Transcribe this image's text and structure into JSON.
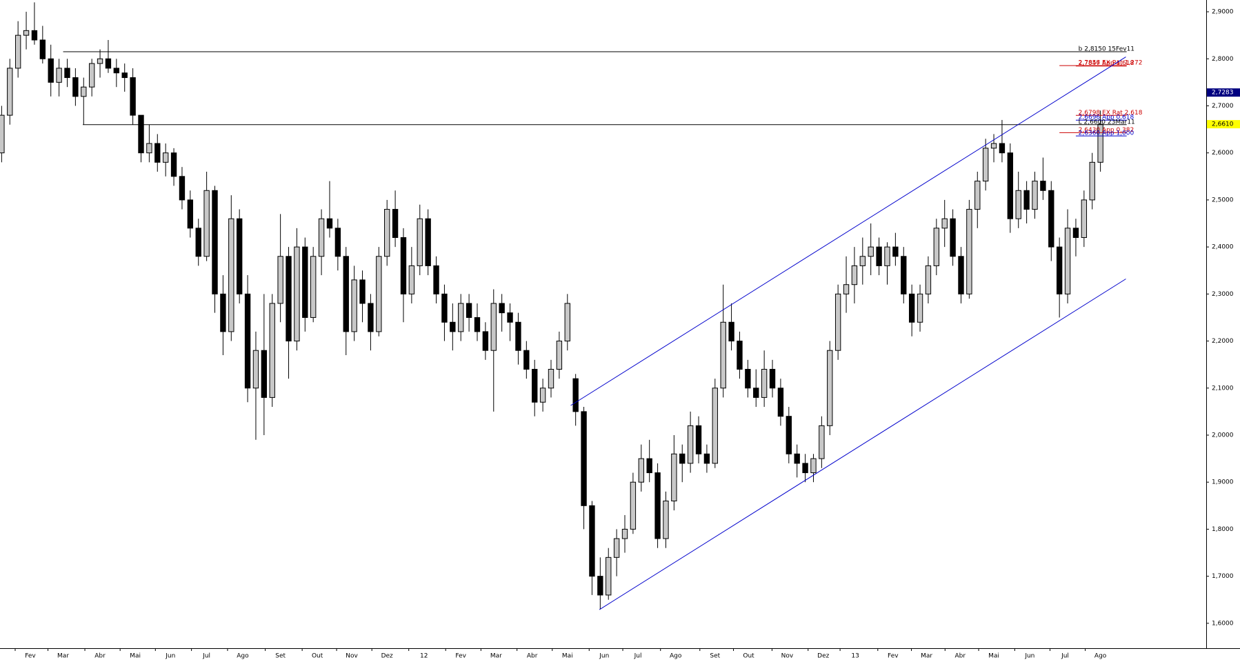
{
  "chart_data": {
    "type": "candlestick",
    "x": [
      0,
      1,
      2,
      3,
      4,
      5,
      6,
      7,
      8,
      9,
      10,
      11,
      12,
      13,
      14,
      15,
      16,
      17,
      18,
      19,
      20,
      21,
      22,
      23,
      24,
      25,
      26,
      27,
      28,
      29,
      30,
      31,
      32,
      33,
      34,
      35,
      36,
      37,
      38,
      39,
      40,
      41,
      42,
      43,
      44,
      45,
      46,
      47,
      48,
      49,
      50,
      51,
      52,
      53,
      54,
      55,
      56,
      57,
      58,
      59,
      60,
      61,
      62,
      63,
      64,
      65,
      66,
      67,
      68,
      69,
      70,
      71,
      72,
      73,
      74,
      75,
      76,
      77,
      78,
      79,
      80,
      81,
      82,
      83,
      84,
      85,
      86,
      87,
      88,
      89,
      90,
      91,
      92,
      93,
      94,
      95,
      96,
      97,
      98,
      99,
      100,
      101,
      102,
      103,
      104,
      105,
      106,
      107,
      108,
      109,
      110,
      111,
      112,
      113,
      114,
      115,
      116,
      117,
      118,
      119,
      120,
      121,
      122,
      123,
      124,
      125,
      126,
      127,
      128,
      129,
      130,
      131,
      132,
      133,
      134
    ],
    "open": [
      2.6,
      2.68,
      2.78,
      2.85,
      2.86,
      2.84,
      2.8,
      2.75,
      2.78,
      2.76,
      2.72,
      2.74,
      2.79,
      2.8,
      2.78,
      2.77,
      2.76,
      2.68,
      2.6,
      2.62,
      2.58,
      2.6,
      2.55,
      2.5,
      2.44,
      2.38,
      2.52,
      2.3,
      2.22,
      2.46,
      2.3,
      2.1,
      2.18,
      2.08,
      2.28,
      2.38,
      2.2,
      2.4,
      2.25,
      2.38,
      2.46,
      2.44,
      2.38,
      2.22,
      2.33,
      2.28,
      2.22,
      2.38,
      2.48,
      2.42,
      2.3,
      2.36,
      2.46,
      2.36,
      2.3,
      2.24,
      2.22,
      2.28,
      2.25,
      2.22,
      2.18,
      2.28,
      2.26,
      2.24,
      2.18,
      2.14,
      2.07,
      2.1,
      2.14,
      2.2,
      2.12,
      2.05,
      1.85,
      1.7,
      1.66,
      1.74,
      1.78,
      1.8,
      1.9,
      1.95,
      1.92,
      1.78,
      1.86,
      1.96,
      1.94,
      2.02,
      1.96,
      1.94,
      2.1,
      2.24,
      2.2,
      2.14,
      2.1,
      2.08,
      2.14,
      2.1,
      2.04,
      1.96,
      1.94,
      1.92,
      1.95,
      2.02,
      2.18,
      2.3,
      2.32,
      2.36,
      2.38,
      2.4,
      2.36,
      2.4,
      2.38,
      2.3,
      2.24,
      2.3,
      2.36,
      2.44,
      2.46,
      2.38,
      2.3,
      2.48,
      2.54,
      2.61,
      2.62,
      2.6,
      2.46,
      2.52,
      2.48,
      2.54,
      2.52,
      2.4,
      2.3,
      2.44,
      2.42,
      2.5,
      2.58
    ],
    "high": [
      2.7,
      2.8,
      2.88,
      2.9,
      2.92,
      2.87,
      2.83,
      2.8,
      2.8,
      2.78,
      2.76,
      2.8,
      2.82,
      2.84,
      2.8,
      2.79,
      2.78,
      2.68,
      2.66,
      2.64,
      2.62,
      2.61,
      2.57,
      2.52,
      2.46,
      2.56,
      2.53,
      2.34,
      2.51,
      2.48,
      2.34,
      2.22,
      2.3,
      2.3,
      2.47,
      2.4,
      2.44,
      2.42,
      2.4,
      2.48,
      2.54,
      2.46,
      2.4,
      2.36,
      2.35,
      2.3,
      2.4,
      2.5,
      2.52,
      2.44,
      2.4,
      2.49,
      2.48,
      2.38,
      2.32,
      2.28,
      2.3,
      2.3,
      2.28,
      2.24,
      2.31,
      2.3,
      2.28,
      2.26,
      2.2,
      2.16,
      2.12,
      2.16,
      2.22,
      2.3,
      2.13,
      2.06,
      1.86,
      1.74,
      1.76,
      1.8,
      1.83,
      1.92,
      1.98,
      1.99,
      1.94,
      1.88,
      2.0,
      1.98,
      2.05,
      2.04,
      1.98,
      2.12,
      2.32,
      2.28,
      2.22,
      2.16,
      2.14,
      2.18,
      2.16,
      2.12,
      2.06,
      1.98,
      1.96,
      1.96,
      2.04,
      2.2,
      2.32,
      2.38,
      2.4,
      2.42,
      2.45,
      2.42,
      2.41,
      2.43,
      2.4,
      2.32,
      2.32,
      2.38,
      2.46,
      2.5,
      2.48,
      2.4,
      2.5,
      2.56,
      2.63,
      2.64,
      2.67,
      2.62,
      2.56,
      2.54,
      2.56,
      2.59,
      2.54,
      2.42,
      2.48,
      2.46,
      2.52,
      2.6,
      2.69
    ],
    "low": [
      2.58,
      2.66,
      2.76,
      2.82,
      2.83,
      2.79,
      2.72,
      2.72,
      2.74,
      2.7,
      2.66,
      2.72,
      2.76,
      2.77,
      2.74,
      2.73,
      2.66,
      2.58,
      2.58,
      2.56,
      2.55,
      2.53,
      2.48,
      2.42,
      2.36,
      2.37,
      2.26,
      2.17,
      2.2,
      2.28,
      2.07,
      1.99,
      2.0,
      2.06,
      2.24,
      2.12,
      2.18,
      2.22,
      2.24,
      2.34,
      2.42,
      2.35,
      2.17,
      2.2,
      2.24,
      2.18,
      2.21,
      2.36,
      2.4,
      2.24,
      2.28,
      2.34,
      2.34,
      2.28,
      2.2,
      2.18,
      2.2,
      2.22,
      2.2,
      2.16,
      2.05,
      2.22,
      2.2,
      2.15,
      2.12,
      2.04,
      2.05,
      2.08,
      2.12,
      2.18,
      2.02,
      1.8,
      1.66,
      1.63,
      1.65,
      1.7,
      1.75,
      1.79,
      1.88,
      1.9,
      1.76,
      1.76,
      1.84,
      1.9,
      1.92,
      1.94,
      1.92,
      1.93,
      2.08,
      2.18,
      2.12,
      2.08,
      2.06,
      2.06,
      2.08,
      2.02,
      1.94,
      1.91,
      1.9,
      1.9,
      1.93,
      2.0,
      2.16,
      2.26,
      2.28,
      2.32,
      2.34,
      2.34,
      2.32,
      2.36,
      2.28,
      2.21,
      2.22,
      2.28,
      2.34,
      2.4,
      2.36,
      2.28,
      2.29,
      2.44,
      2.52,
      2.58,
      2.58,
      2.43,
      2.44,
      2.45,
      2.46,
      2.5,
      2.37,
      2.25,
      2.28,
      2.38,
      2.4,
      2.48,
      2.56
    ],
    "close": [
      2.68,
      2.78,
      2.85,
      2.86,
      2.84,
      2.8,
      2.75,
      2.78,
      2.76,
      2.72,
      2.74,
      2.79,
      2.8,
      2.78,
      2.77,
      2.76,
      2.68,
      2.6,
      2.62,
      2.58,
      2.6,
      2.55,
      2.5,
      2.44,
      2.38,
      2.52,
      2.3,
      2.22,
      2.46,
      2.3,
      2.1,
      2.18,
      2.08,
      2.28,
      2.38,
      2.2,
      2.4,
      2.25,
      2.38,
      2.46,
      2.44,
      2.38,
      2.22,
      2.33,
      2.28,
      2.22,
      2.38,
      2.48,
      2.42,
      2.3,
      2.36,
      2.46,
      2.36,
      2.3,
      2.24,
      2.22,
      2.28,
      2.25,
      2.22,
      2.18,
      2.28,
      2.26,
      2.24,
      2.18,
      2.14,
      2.07,
      2.1,
      2.14,
      2.2,
      2.28,
      2.05,
      1.85,
      1.7,
      1.66,
      1.74,
      1.78,
      1.8,
      1.9,
      1.95,
      1.92,
      1.78,
      1.86,
      1.96,
      1.94,
      2.02,
      1.96,
      1.94,
      2.1,
      2.24,
      2.2,
      2.14,
      2.1,
      2.08,
      2.14,
      2.1,
      2.04,
      1.96,
      1.94,
      1.92,
      1.95,
      2.02,
      2.18,
      2.3,
      2.32,
      2.36,
      2.38,
      2.4,
      2.36,
      2.4,
      2.38,
      2.3,
      2.24,
      2.3,
      2.36,
      2.44,
      2.46,
      2.38,
      2.3,
      2.48,
      2.54,
      2.61,
      2.62,
      2.6,
      2.46,
      2.52,
      2.48,
      2.54,
      2.52,
      2.4,
      2.3,
      2.44,
      2.42,
      2.5,
      2.58,
      2.661
    ],
    "up_color": "#c8c8c8",
    "down_color": "#000000",
    "xlim": [
      -0.2,
      146.9
    ],
    "ylim": [
      1.547,
      2.925
    ],
    "xticks": [
      {
        "value": 3.5,
        "label": "Fev"
      },
      {
        "value": 7.5,
        "label": "Mar"
      },
      {
        "value": 12,
        "label": "Abr"
      },
      {
        "value": 16.3,
        "label": "Mai"
      },
      {
        "value": 20.6,
        "label": "Jun"
      },
      {
        "value": 25,
        "label": "Jul"
      },
      {
        "value": 29.4,
        "label": "Ago"
      },
      {
        "value": 34,
        "label": "Set"
      },
      {
        "value": 38.5,
        "label": "Out"
      },
      {
        "value": 42.7,
        "label": "Nov"
      },
      {
        "value": 47,
        "label": "Dez"
      },
      {
        "value": 51.5,
        "label": "12"
      },
      {
        "value": 56,
        "label": "Fev"
      },
      {
        "value": 60.3,
        "label": "Mar"
      },
      {
        "value": 64.7,
        "label": "Abr"
      },
      {
        "value": 69,
        "label": "Mai"
      },
      {
        "value": 73.5,
        "label": "Jun"
      },
      {
        "value": 77.6,
        "label": "Jul"
      },
      {
        "value": 82.2,
        "label": "Ago"
      },
      {
        "value": 87,
        "label": "Set"
      },
      {
        "value": 91.1,
        "label": "Out"
      },
      {
        "value": 95.8,
        "label": "Nov"
      },
      {
        "value": 100.2,
        "label": "Dez"
      },
      {
        "value": 104.1,
        "label": "13"
      },
      {
        "value": 108.7,
        "label": "Fev"
      },
      {
        "value": 112.8,
        "label": "Mar"
      },
      {
        "value": 116.9,
        "label": "Abr"
      },
      {
        "value": 121,
        "label": "Mai"
      },
      {
        "value": 125.4,
        "label": "Jun"
      },
      {
        "value": 129.7,
        "label": "Jul"
      },
      {
        "value": 134,
        "label": "Ago"
      }
    ],
    "yticks": [
      {
        "value": 1.6,
        "label": "1,6000"
      },
      {
        "value": 1.7,
        "label": "1,7000"
      },
      {
        "value": 1.8,
        "label": "1,8000"
      },
      {
        "value": 1.9,
        "label": "1,9000"
      },
      {
        "value": 2.0,
        "label": "2,0000"
      },
      {
        "value": 2.1,
        "label": "2,1000"
      },
      {
        "value": 2.2,
        "label": "2,2000"
      },
      {
        "value": 2.3,
        "label": "2,3000"
      },
      {
        "value": 2.4,
        "label": "2,4000"
      },
      {
        "value": 2.5,
        "label": "2,5000"
      },
      {
        "value": 2.6,
        "label": "2,6000"
      },
      {
        "value": 2.7,
        "label": "2,7000"
      },
      {
        "value": 2.8,
        "label": "2,8000"
      },
      {
        "value": 2.9,
        "label": "2,9000"
      }
    ],
    "hlines": [
      {
        "value": 2.815,
        "label": "b 2,8150 15Fev11",
        "color": "#000000",
        "x": [
          7.5,
          137.2
        ]
      },
      {
        "value": 2.7847,
        "label": "2,7847 App 1,618",
        "color": "#cc0000",
        "x": [
          131,
          137.2
        ]
      },
      {
        "value": 2.7856,
        "label": "2,7856 EX Rat 1,272",
        "color": "#cc0000",
        "x": [
          129,
          137.2
        ]
      },
      {
        "value": 2.6798,
        "label": "2,6798 EX Rat 2,618",
        "color": "#cc0000",
        "x": [
          131,
          137.2
        ]
      },
      {
        "value": 2.6696,
        "label": "2,6696 App 0,618",
        "color": "#0000cc",
        "x": [
          131,
          137.2
        ]
      },
      {
        "value": 2.66,
        "label": "L 2,6600 23Mar11",
        "color": "#000000",
        "x": [
          9.9,
          137.2
        ]
      },
      {
        "value": 2.643,
        "label": "2,6430 App 0,382",
        "color": "#cc0000",
        "x": [
          129,
          137.2
        ]
      },
      {
        "value": 2.636,
        "label": "2,6360 App 1,000",
        "color": "#0000cc",
        "x": [
          131,
          137.2
        ]
      }
    ],
    "trendlines": [
      {
        "x": [
          69.4,
          137.1
        ],
        "y": [
          2.063,
          2.804
        ],
        "color": "#0000cc"
      },
      {
        "x": [
          72.9,
          137.1
        ],
        "y": [
          1.629,
          2.332
        ],
        "color": "#0000cc"
      }
    ],
    "price_tags": [
      {
        "value": 2.7283,
        "label": "2,7283",
        "color": "#000080",
        "text_color": "#ffffff"
      },
      {
        "value": 2.661,
        "label": "2,6610",
        "color": "#ffff00",
        "text_color": "#000000"
      }
    ]
  }
}
